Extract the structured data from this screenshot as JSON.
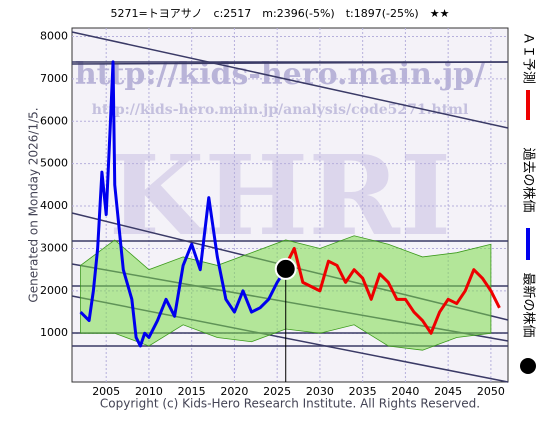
{
  "chart_data": {
    "type": "line",
    "title": "5271=トヨアサノ　c:2517　m:2396(-5%)　t:1897(-25%)　★★",
    "generated": "Generated on Monday 2026/1/5.",
    "copyright": "Copyright (c) Kids-Hero Research Institute. All Rights Reserved.",
    "watermarks": [
      "http://kids-hero.main.jp/",
      "http://kids-hero.main.jp/analysis/code5271.html",
      "KHRI"
    ],
    "xlim": [
      2001,
      2052
    ],
    "ylim": [
      -150,
      8200
    ],
    "xticks": [
      2005,
      2010,
      2015,
      2020,
      2025,
      2030,
      2035,
      2040,
      2045,
      2050
    ],
    "yticks": [
      1000,
      2000,
      3000,
      4000,
      5000,
      6000,
      7000,
      8000
    ],
    "grid": true,
    "band": {
      "color": "#7ddc4a",
      "x": [
        2002,
        2006,
        2010,
        2014,
        2018,
        2022,
        2026,
        2030,
        2034,
        2038,
        2042,
        2046,
        2050
      ],
      "upper": [
        2600,
        3200,
        2500,
        2800,
        2600,
        2900,
        3200,
        3000,
        3300,
        3100,
        2800,
        2900,
        3100
      ],
      "lower": [
        1000,
        1000,
        700,
        1200,
        900,
        800,
        1100,
        1000,
        1200,
        700,
        600,
        900,
        1000
      ]
    },
    "series": [
      {
        "name": "ＡＩ予測",
        "color": "#ee0000",
        "x": [
          2026,
          2027,
          2028,
          2029,
          2030,
          2031,
          2032,
          2033,
          2034,
          2035,
          2036,
          2037,
          2038,
          2039,
          2040,
          2041,
          2042,
          2043,
          2044,
          2045,
          2046,
          2047,
          2048,
          2049,
          2050,
          2051
        ],
        "values": [
          2600,
          3000,
          2200,
          2100,
          2000,
          2700,
          2600,
          2200,
          2500,
          2300,
          1800,
          2400,
          2200,
          1800,
          1800,
          1500,
          1300,
          1000,
          1500,
          1800,
          1700,
          2000,
          2500,
          2300,
          2000,
          1600
        ]
      },
      {
        "name": "過去の株価",
        "color": "#0000ee",
        "x": [
          2002,
          2003,
          2003.5,
          2004,
          2004.5,
          2005,
          2005.5,
          2005.8,
          2006,
          2006.5,
          2007,
          2008,
          2008.5,
          2009,
          2009.5,
          2010,
          2011,
          2012,
          2013,
          2014,
          2015,
          2016,
          2017,
          2018,
          2019,
          2020,
          2021,
          2022,
          2023,
          2024,
          2025,
          2026
        ],
        "values": [
          1500,
          1300,
          2000,
          3000,
          4800,
          3800,
          6000,
          7400,
          4500,
          3500,
          2500,
          1800,
          900,
          700,
          1000,
          900,
          1300,
          1800,
          1400,
          2600,
          3100,
          2500,
          4200,
          2800,
          1800,
          1500,
          2000,
          1500,
          1600,
          1800,
          2200,
          2517
        ]
      }
    ],
    "latest": {
      "name": "最新の株価",
      "color": "#000000",
      "x": 2026,
      "value": 2517
    }
  }
}
